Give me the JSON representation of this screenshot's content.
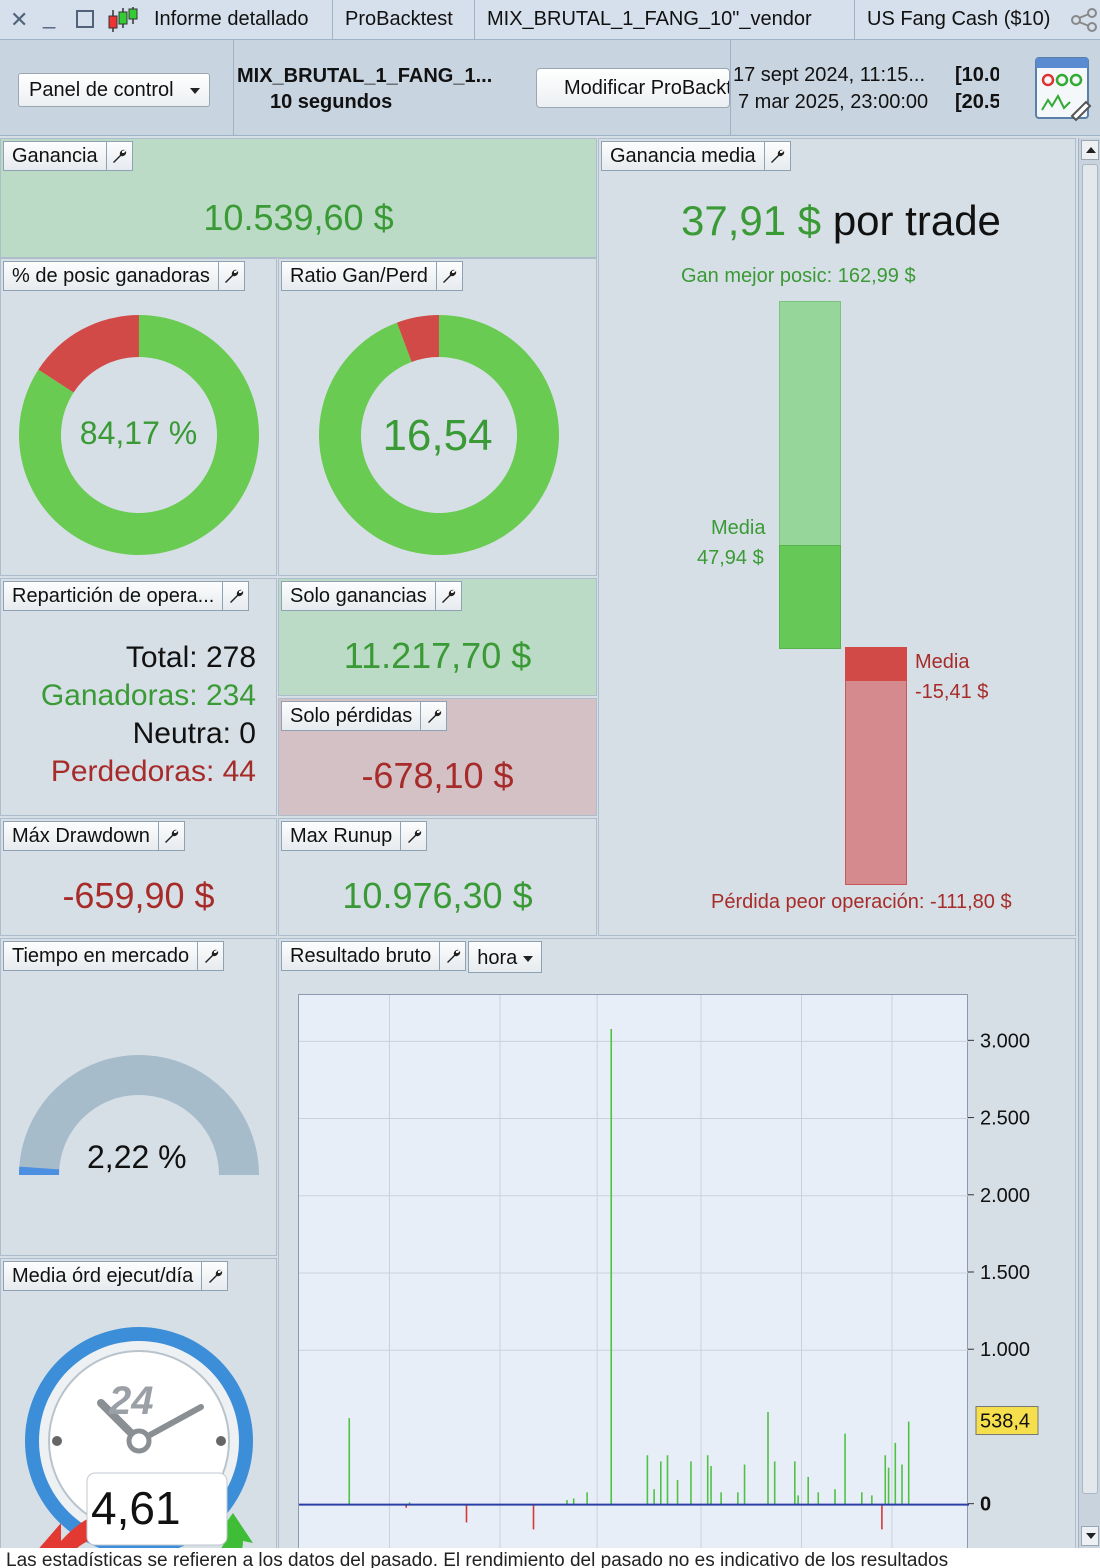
{
  "tabs": [
    {
      "label": "Informe detallado"
    },
    {
      "label": "ProBacktest"
    },
    {
      "label": "MIX_BRUTAL_1_FANG_10\"_vendor"
    },
    {
      "label": "US Fang Cash ($10)"
    }
  ],
  "toolbar": {
    "panel_select": "Panel de control",
    "strategy_name": "MIX_BRUTAL_1_FANG_1...",
    "strategy_interval": "10 segundos",
    "modify_button": "Modificar ProBacktest",
    "date_start": "17 sept 2024, 11:15...",
    "date_end": "7 mar 2025, 23:00:00",
    "price_start": "[10.0",
    "price_end": "[20.5"
  },
  "panels": {
    "ganancia": {
      "title": "Ganancia",
      "value": "10.539,60 $"
    },
    "win_pct": {
      "title": "% de posic ganadoras",
      "value": "84,17 %",
      "fraction": 0.8417
    },
    "ratio": {
      "title": "Ratio Gan/Perd",
      "value": "16,54",
      "fraction": 0.943
    },
    "avg_gain": {
      "title": "Ganancia media",
      "value": "37,91 $",
      "suffix": "por trade",
      "best_label": "Gan mejor posic: 162,99 $",
      "media_win_label": "Media",
      "media_win_value": "47,94 $",
      "media_loss_label": "Media",
      "media_loss_value": "-15,41 $",
      "worst_label": "Pérdida peor operación: -111,80 $"
    },
    "repartition": {
      "title": "Repartición de opera...",
      "total": "Total: 278",
      "winners": "Ganadoras: 234",
      "neutral": "Neutra: 0",
      "losers": "Perdedoras: 44"
    },
    "solo_ganancias": {
      "title": "Solo ganancias",
      "value": "11.217,70 $"
    },
    "solo_perdidas": {
      "title": "Solo pérdidas",
      "value": "-678,10 $"
    },
    "max_drawdown": {
      "title": "Máx Drawdown",
      "value": "-659,90 $"
    },
    "max_runup": {
      "title": "Max Runup",
      "value": "10.976,30 $"
    },
    "time_in_market": {
      "title": "Tiempo en mercado",
      "value": "2,22 %",
      "fraction": 0.0222
    },
    "orders_per_day": {
      "title": "Media órd ejecut/día",
      "value": "4,61",
      "dial": "24"
    },
    "gross_result": {
      "title": "Resultado bruto",
      "period": "hora"
    }
  },
  "chart_data": {
    "type": "bar",
    "title": "Resultado bruto",
    "ylim": [
      -300,
      3300
    ],
    "yticks": [
      "3.000",
      "2.500",
      "2.000",
      "1.500",
      "1.000",
      "0"
    ],
    "ytick_values": [
      3000,
      2500,
      2000,
      1500,
      1000,
      0
    ],
    "last_value_label": "538,4",
    "last_value": 538.4,
    "grid": true,
    "bars": [
      {
        "x": 0.075,
        "v": 560
      },
      {
        "x": 0.16,
        "v": -20
      },
      {
        "x": 0.165,
        "v": 15
      },
      {
        "x": 0.25,
        "v": -115
      },
      {
        "x": 0.35,
        "v": -160
      },
      {
        "x": 0.4,
        "v": 30
      },
      {
        "x": 0.41,
        "v": 40
      },
      {
        "x": 0.43,
        "v": 80
      },
      {
        "x": 0.466,
        "v": 3080
      },
      {
        "x": 0.52,
        "v": 320
      },
      {
        "x": 0.53,
        "v": 100
      },
      {
        "x": 0.54,
        "v": 280
      },
      {
        "x": 0.55,
        "v": 320
      },
      {
        "x": 0.565,
        "v": 160
      },
      {
        "x": 0.585,
        "v": 280
      },
      {
        "x": 0.61,
        "v": 320
      },
      {
        "x": 0.615,
        "v": 250
      },
      {
        "x": 0.63,
        "v": 80
      },
      {
        "x": 0.655,
        "v": 80
      },
      {
        "x": 0.665,
        "v": 260
      },
      {
        "x": 0.7,
        "v": 600
      },
      {
        "x": 0.71,
        "v": 280
      },
      {
        "x": 0.74,
        "v": 280
      },
      {
        "x": 0.745,
        "v": 60
      },
      {
        "x": 0.76,
        "v": 180
      },
      {
        "x": 0.775,
        "v": 80
      },
      {
        "x": 0.8,
        "v": 100
      },
      {
        "x": 0.815,
        "v": 460
      },
      {
        "x": 0.84,
        "v": 80
      },
      {
        "x": 0.855,
        "v": 60
      },
      {
        "x": 0.87,
        "v": -160
      },
      {
        "x": 0.875,
        "v": 320
      },
      {
        "x": 0.88,
        "v": 240
      },
      {
        "x": 0.89,
        "v": 400
      },
      {
        "x": 0.9,
        "v": 260
      },
      {
        "x": 0.91,
        "v": 538
      }
    ]
  },
  "footer": "Las estadísticas se refieren a los datos del pasado. El rendimiento del pasado no es indicativo de los resultados"
}
